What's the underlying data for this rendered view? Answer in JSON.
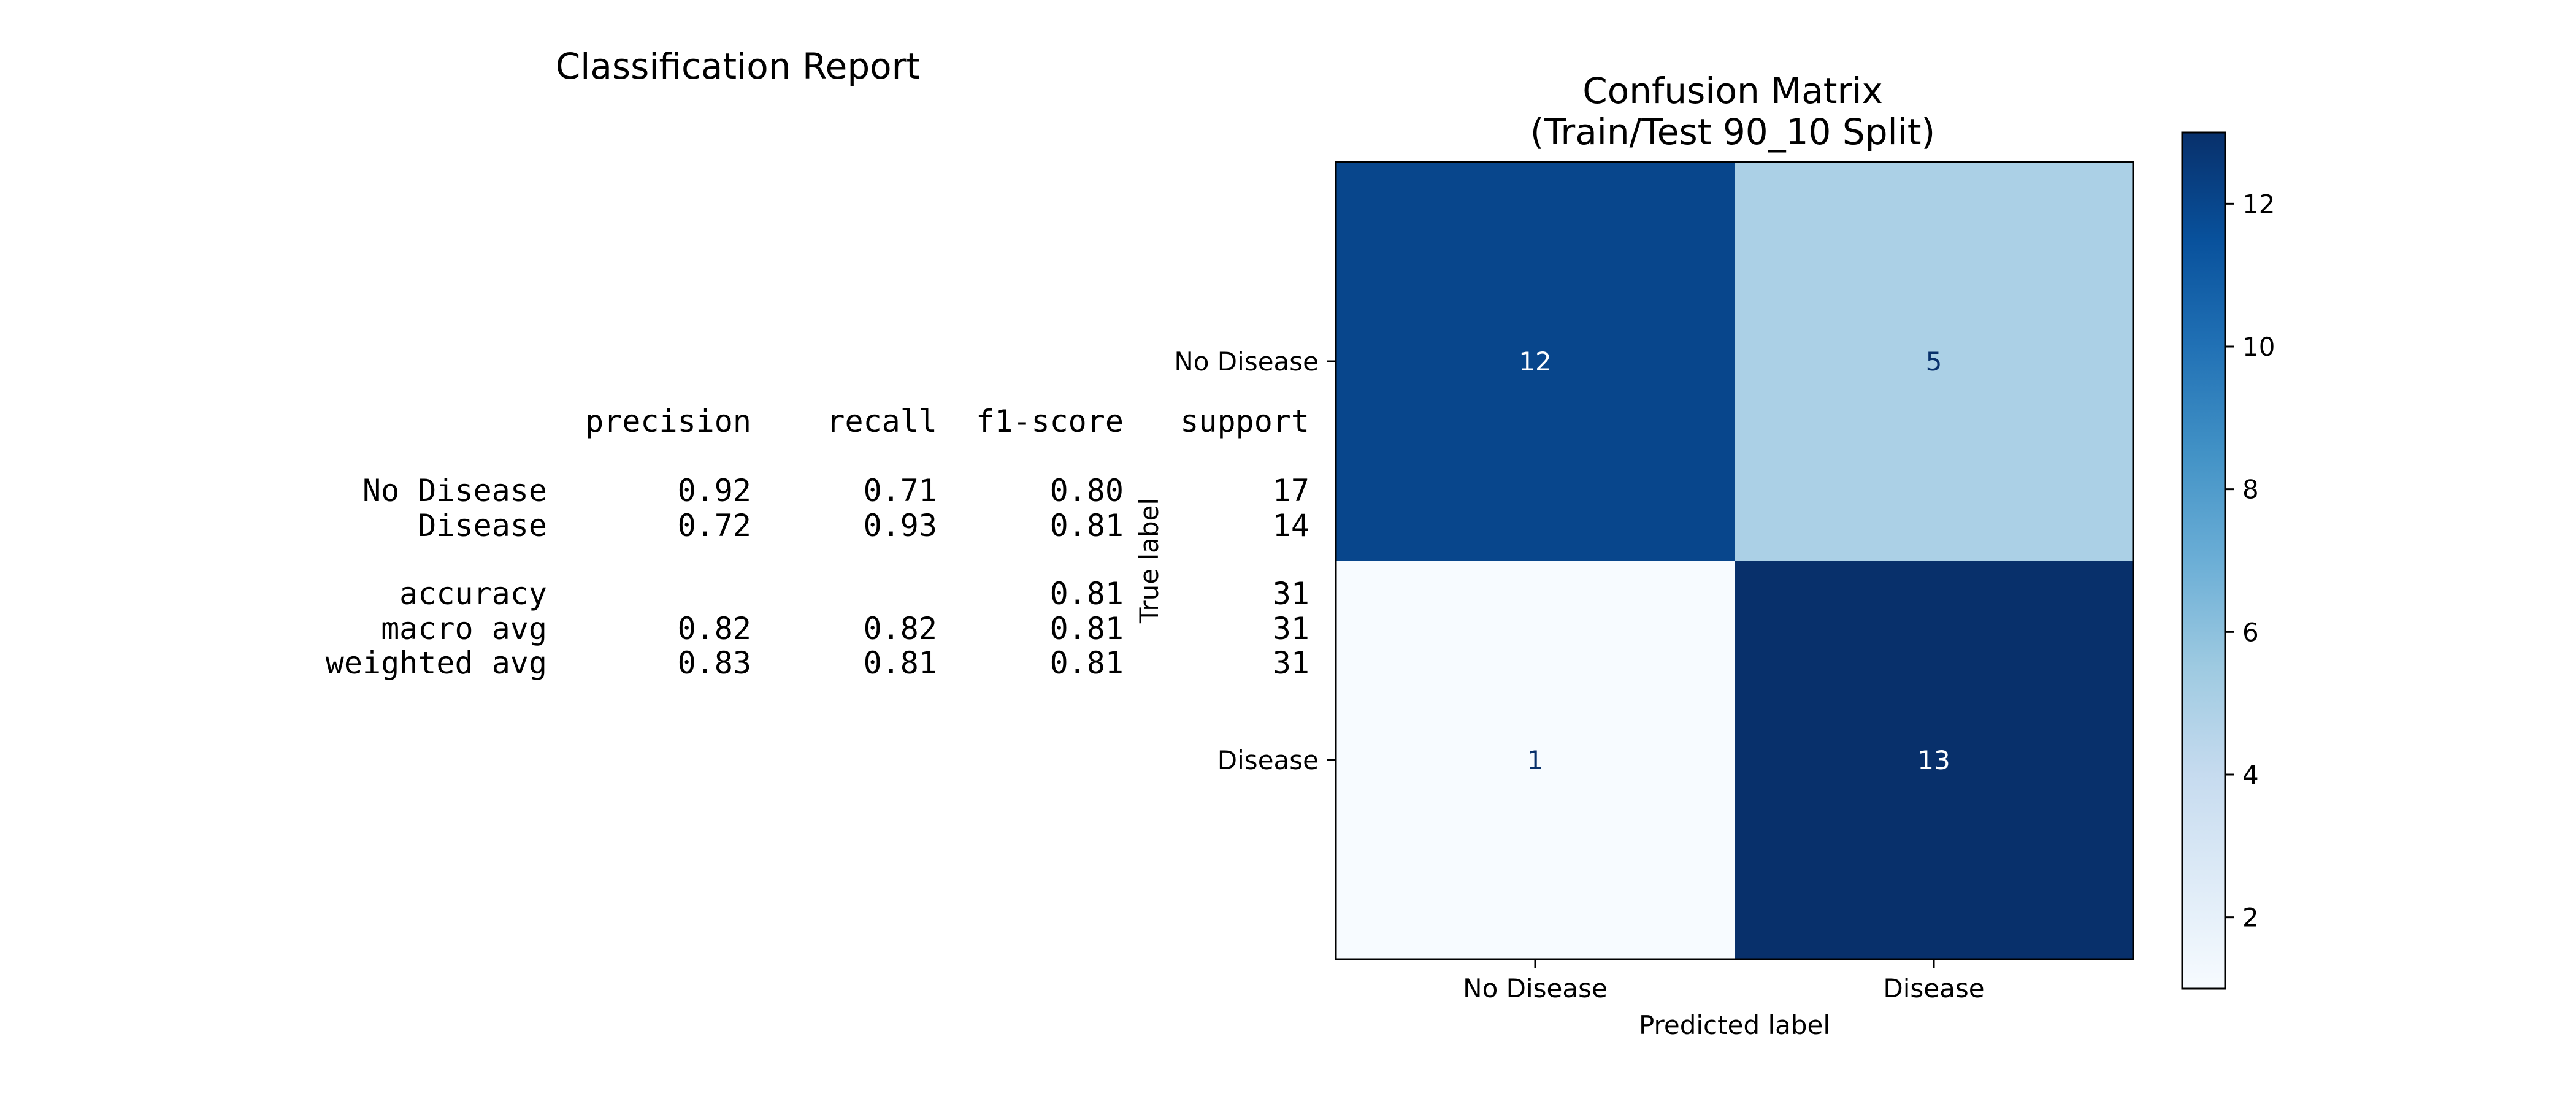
{
  "report": {
    "title": "Classification Report",
    "columns": [
      "precision",
      "recall",
      "f1-score",
      "support"
    ],
    "rows": [
      {
        "label": "No Disease",
        "precision": "0.92",
        "recall": "0.71",
        "f1": "0.80",
        "support": "17"
      },
      {
        "label": "Disease",
        "precision": "0.72",
        "recall": "0.93",
        "f1": "0.81",
        "support": "14"
      },
      {
        "label": "accuracy",
        "precision": "",
        "recall": "",
        "f1": "0.81",
        "support": "31"
      },
      {
        "label": "macro avg",
        "precision": "0.82",
        "recall": "0.82",
        "f1": "0.81",
        "support": "31"
      },
      {
        "label": "weighted avg",
        "precision": "0.83",
        "recall": "0.81",
        "f1": "0.81",
        "support": "31"
      }
    ]
  },
  "chart_data": {
    "type": "heatmap",
    "title_line1": "Confusion Matrix",
    "title_line2": "(Train/Test 90_10 Split)",
    "xlabel": "Predicted label",
    "ylabel": "True label",
    "x_categories": [
      "No Disease",
      "Disease"
    ],
    "y_categories": [
      "No Disease",
      "Disease"
    ],
    "matrix": [
      [
        12,
        5
      ],
      [
        1,
        13
      ]
    ],
    "colormap": "Blues",
    "colorbar": {
      "min": 1,
      "max": 13,
      "ticks": [
        2,
        4,
        6,
        8,
        10,
        12
      ]
    },
    "colors": {
      "low": "#f7fbff",
      "high": "#08306b",
      "text_dark": "#08306b",
      "text_light": "#ffffff"
    },
    "grid": false
  }
}
